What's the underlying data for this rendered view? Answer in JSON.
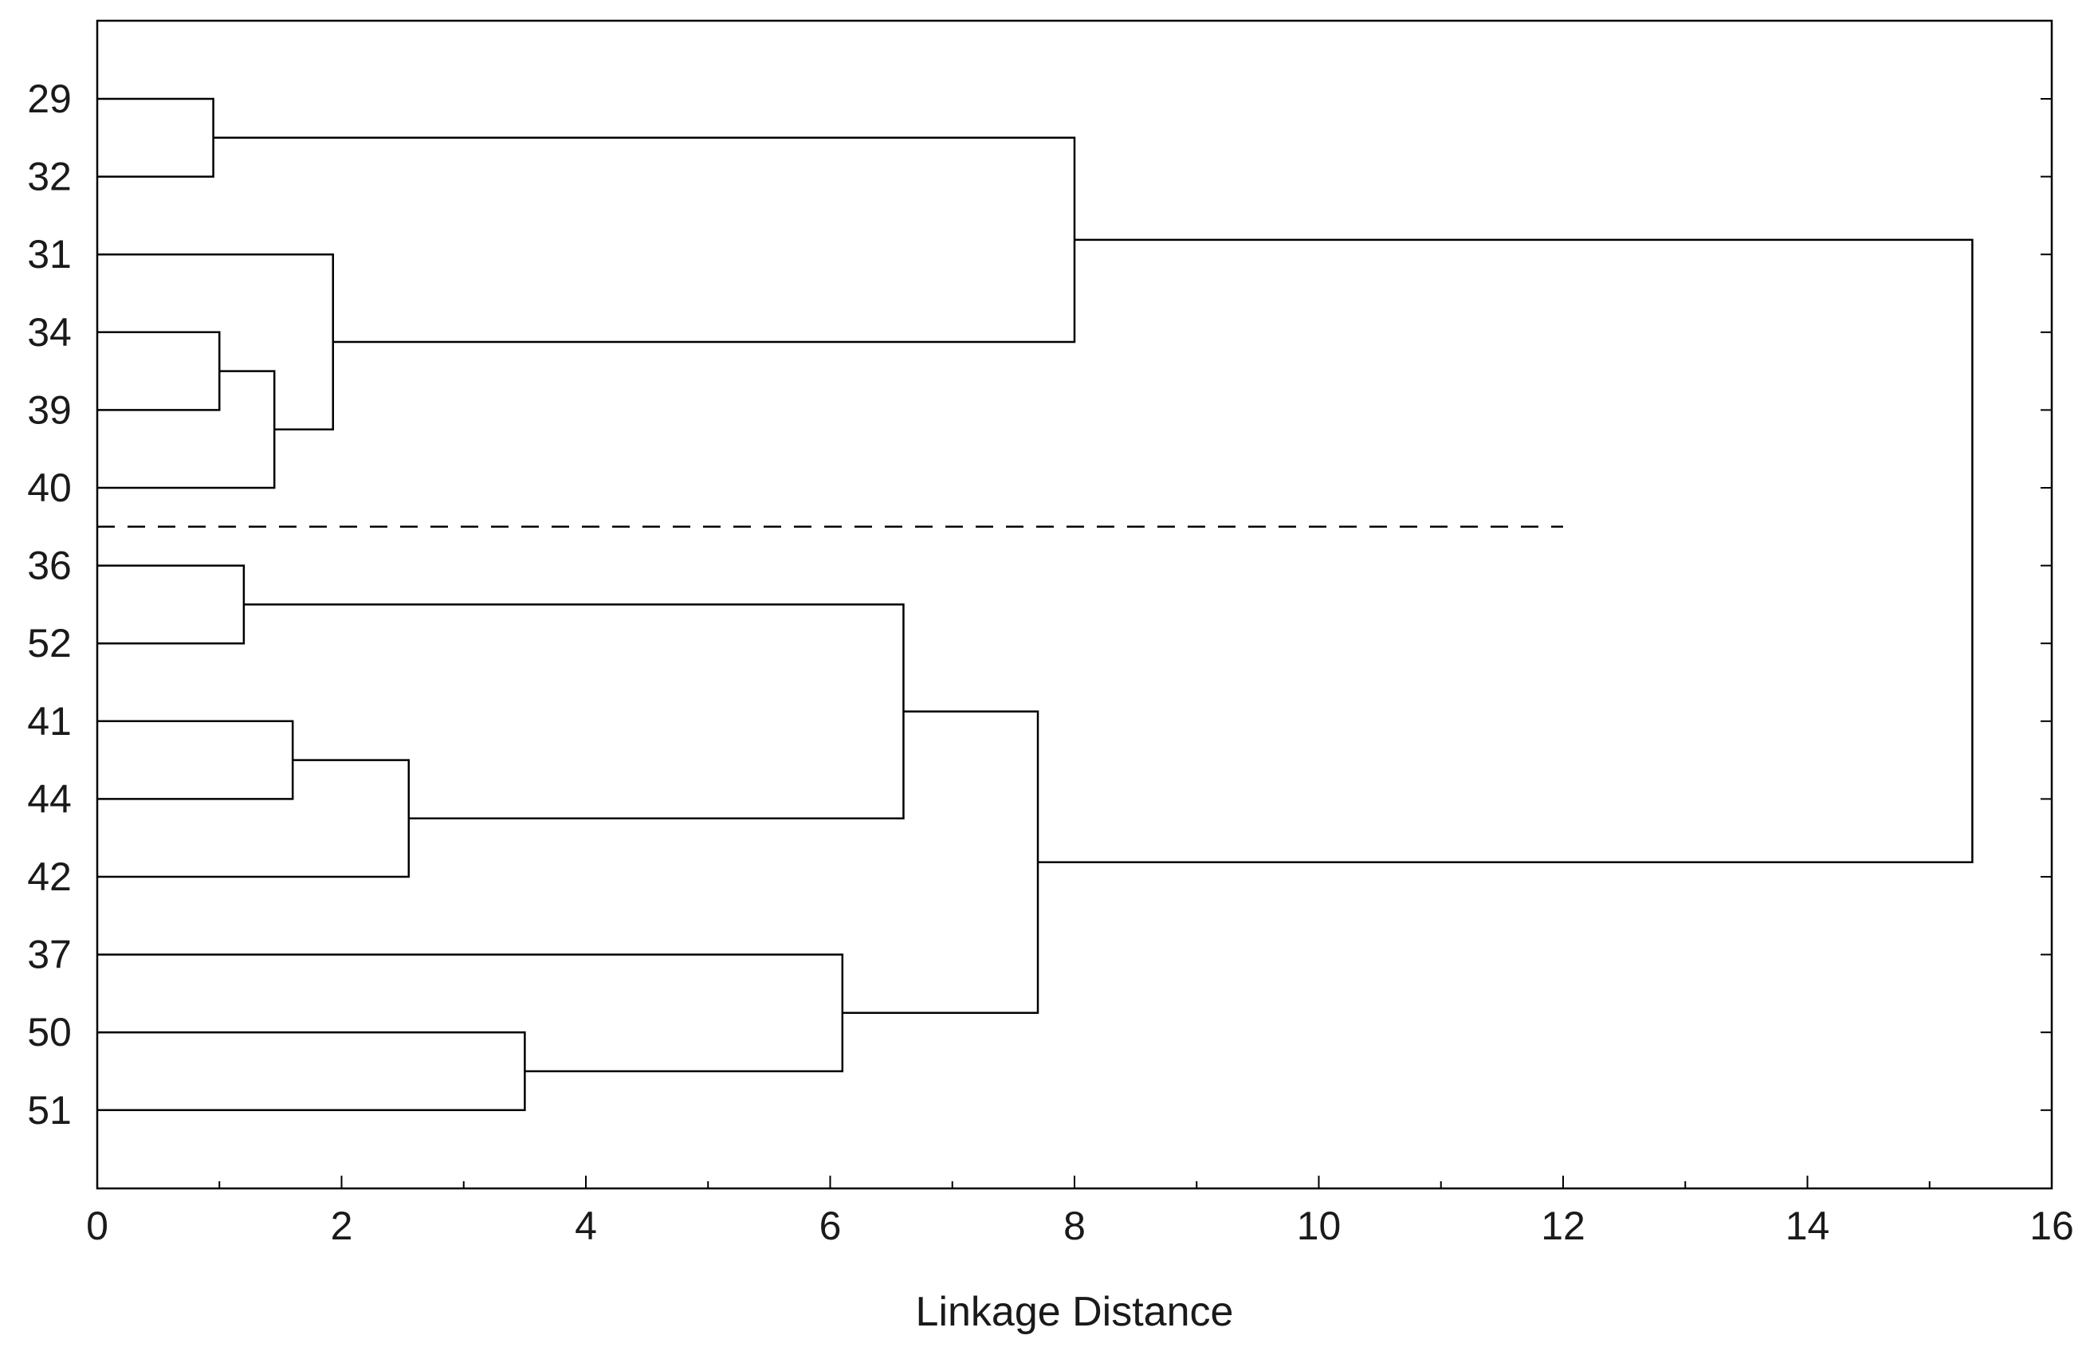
{
  "chart_data": {
    "type": "dendrogram",
    "orientation": "horizontal",
    "xlabel": "Linkage Distance",
    "ylabel": "",
    "title": "",
    "xlim": [
      0,
      16
    ],
    "xticks": [
      "0",
      "2",
      "4",
      "6",
      "8",
      "10",
      "12",
      "14",
      "16"
    ],
    "leaves": [
      "29",
      "32",
      "31",
      "34",
      "39",
      "40",
      "36",
      "52",
      "41",
      "44",
      "42",
      "37",
      "50",
      "51"
    ],
    "merges": [
      {
        "left": "29",
        "right": "32",
        "distance": 0.95
      },
      {
        "left": "34",
        "right": "39",
        "distance": 1.0
      },
      {
        "left": "34-39",
        "right": "40",
        "distance": 1.45
      },
      {
        "left": "31",
        "right": "34-39-40",
        "distance": 1.93
      },
      {
        "left": "29-32",
        "right": "31-34-39-40",
        "distance": 8.0
      },
      {
        "left": "36",
        "right": "52",
        "distance": 1.2
      },
      {
        "left": "41",
        "right": "44",
        "distance": 1.6
      },
      {
        "left": "41-44",
        "right": "42",
        "distance": 2.55
      },
      {
        "left": "36-52",
        "right": "41-44-42",
        "distance": 6.6
      },
      {
        "left": "50",
        "right": "51",
        "distance": 3.5
      },
      {
        "left": "37",
        "right": "50-51",
        "distance": 6.1
      },
      {
        "left": "36-52-41-44-42",
        "right": "37-50-51",
        "distance": 7.7
      },
      {
        "left": "29-32-31-34-39-40",
        "right": "36-52-41-44-42-37-50-51",
        "distance": 15.35
      }
    ],
    "cut_line": {
      "style": "dashed",
      "x_range": [
        0,
        12
      ]
    },
    "grid": false,
    "legend": "none"
  }
}
